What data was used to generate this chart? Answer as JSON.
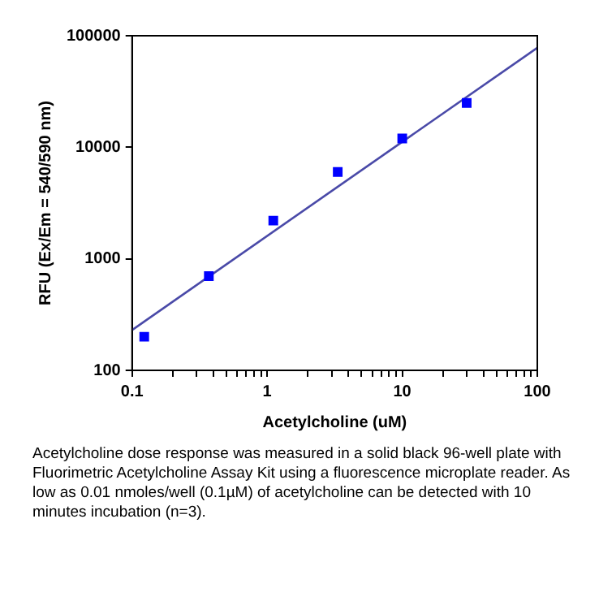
{
  "chart_data": {
    "type": "scatter",
    "xlabel": "Acetylcholine (uM)",
    "ylabel": "RFU (Ex/Em = 540/590 nm)",
    "log": "xy",
    "xlim": [
      0.1,
      100
    ],
    "ylim": [
      100,
      100000
    ],
    "xticks": [
      0.1,
      {
        "value": 0.2,
        "label": null
      },
      {
        "value": 0.3,
        "label": null
      },
      {
        "value": 0.4,
        "label": null
      },
      {
        "value": 0.5,
        "label": null
      },
      {
        "value": 0.6,
        "label": null
      },
      {
        "value": 0.7,
        "label": null
      },
      {
        "value": 0.8,
        "label": null
      },
      {
        "value": 0.9,
        "label": null
      },
      1,
      {
        "value": 2,
        "label": null
      },
      {
        "value": 3,
        "label": null
      },
      {
        "value": 4,
        "label": null
      },
      {
        "value": 5,
        "label": null
      },
      {
        "value": 6,
        "label": null
      },
      {
        "value": 7,
        "label": null
      },
      {
        "value": 8,
        "label": null
      },
      {
        "value": 9,
        "label": null
      },
      10,
      {
        "value": 20,
        "label": null
      },
      {
        "value": 30,
        "label": null
      },
      {
        "value": 40,
        "label": null
      },
      {
        "value": 50,
        "label": null
      },
      {
        "value": 60,
        "label": null
      },
      {
        "value": 70,
        "label": null
      },
      {
        "value": 80,
        "label": null
      },
      {
        "value": 90,
        "label": null
      },
      100
    ],
    "yticks": [
      100,
      1000,
      10000,
      100000
    ],
    "marker": "square",
    "grid": false,
    "legend": false,
    "series": [
      {
        "color": "#0000ff",
        "x": [
          0.123,
          0.37,
          1.11,
          3.33,
          10,
          30
        ],
        "values": [
          200,
          700,
          2200,
          6000,
          12000,
          25000
        ]
      },
      {
        "type": "line",
        "color": "#4a4aa8",
        "x": [
          0.1,
          100
        ],
        "values": [
          230,
          78000
        ],
        "marker": "none"
      }
    ],
    "annotations": [
      "Acetylcholine dose response was measured in a solid black 96-well plate with Fluorimetric Acetylcholine Assay Kit using a fluorescence microplate reader. As low as 0.01 nmoles/well (0.1µM) of acetylcholine can be detected with 10 minutes incubation (n=3)."
    ]
  }
}
